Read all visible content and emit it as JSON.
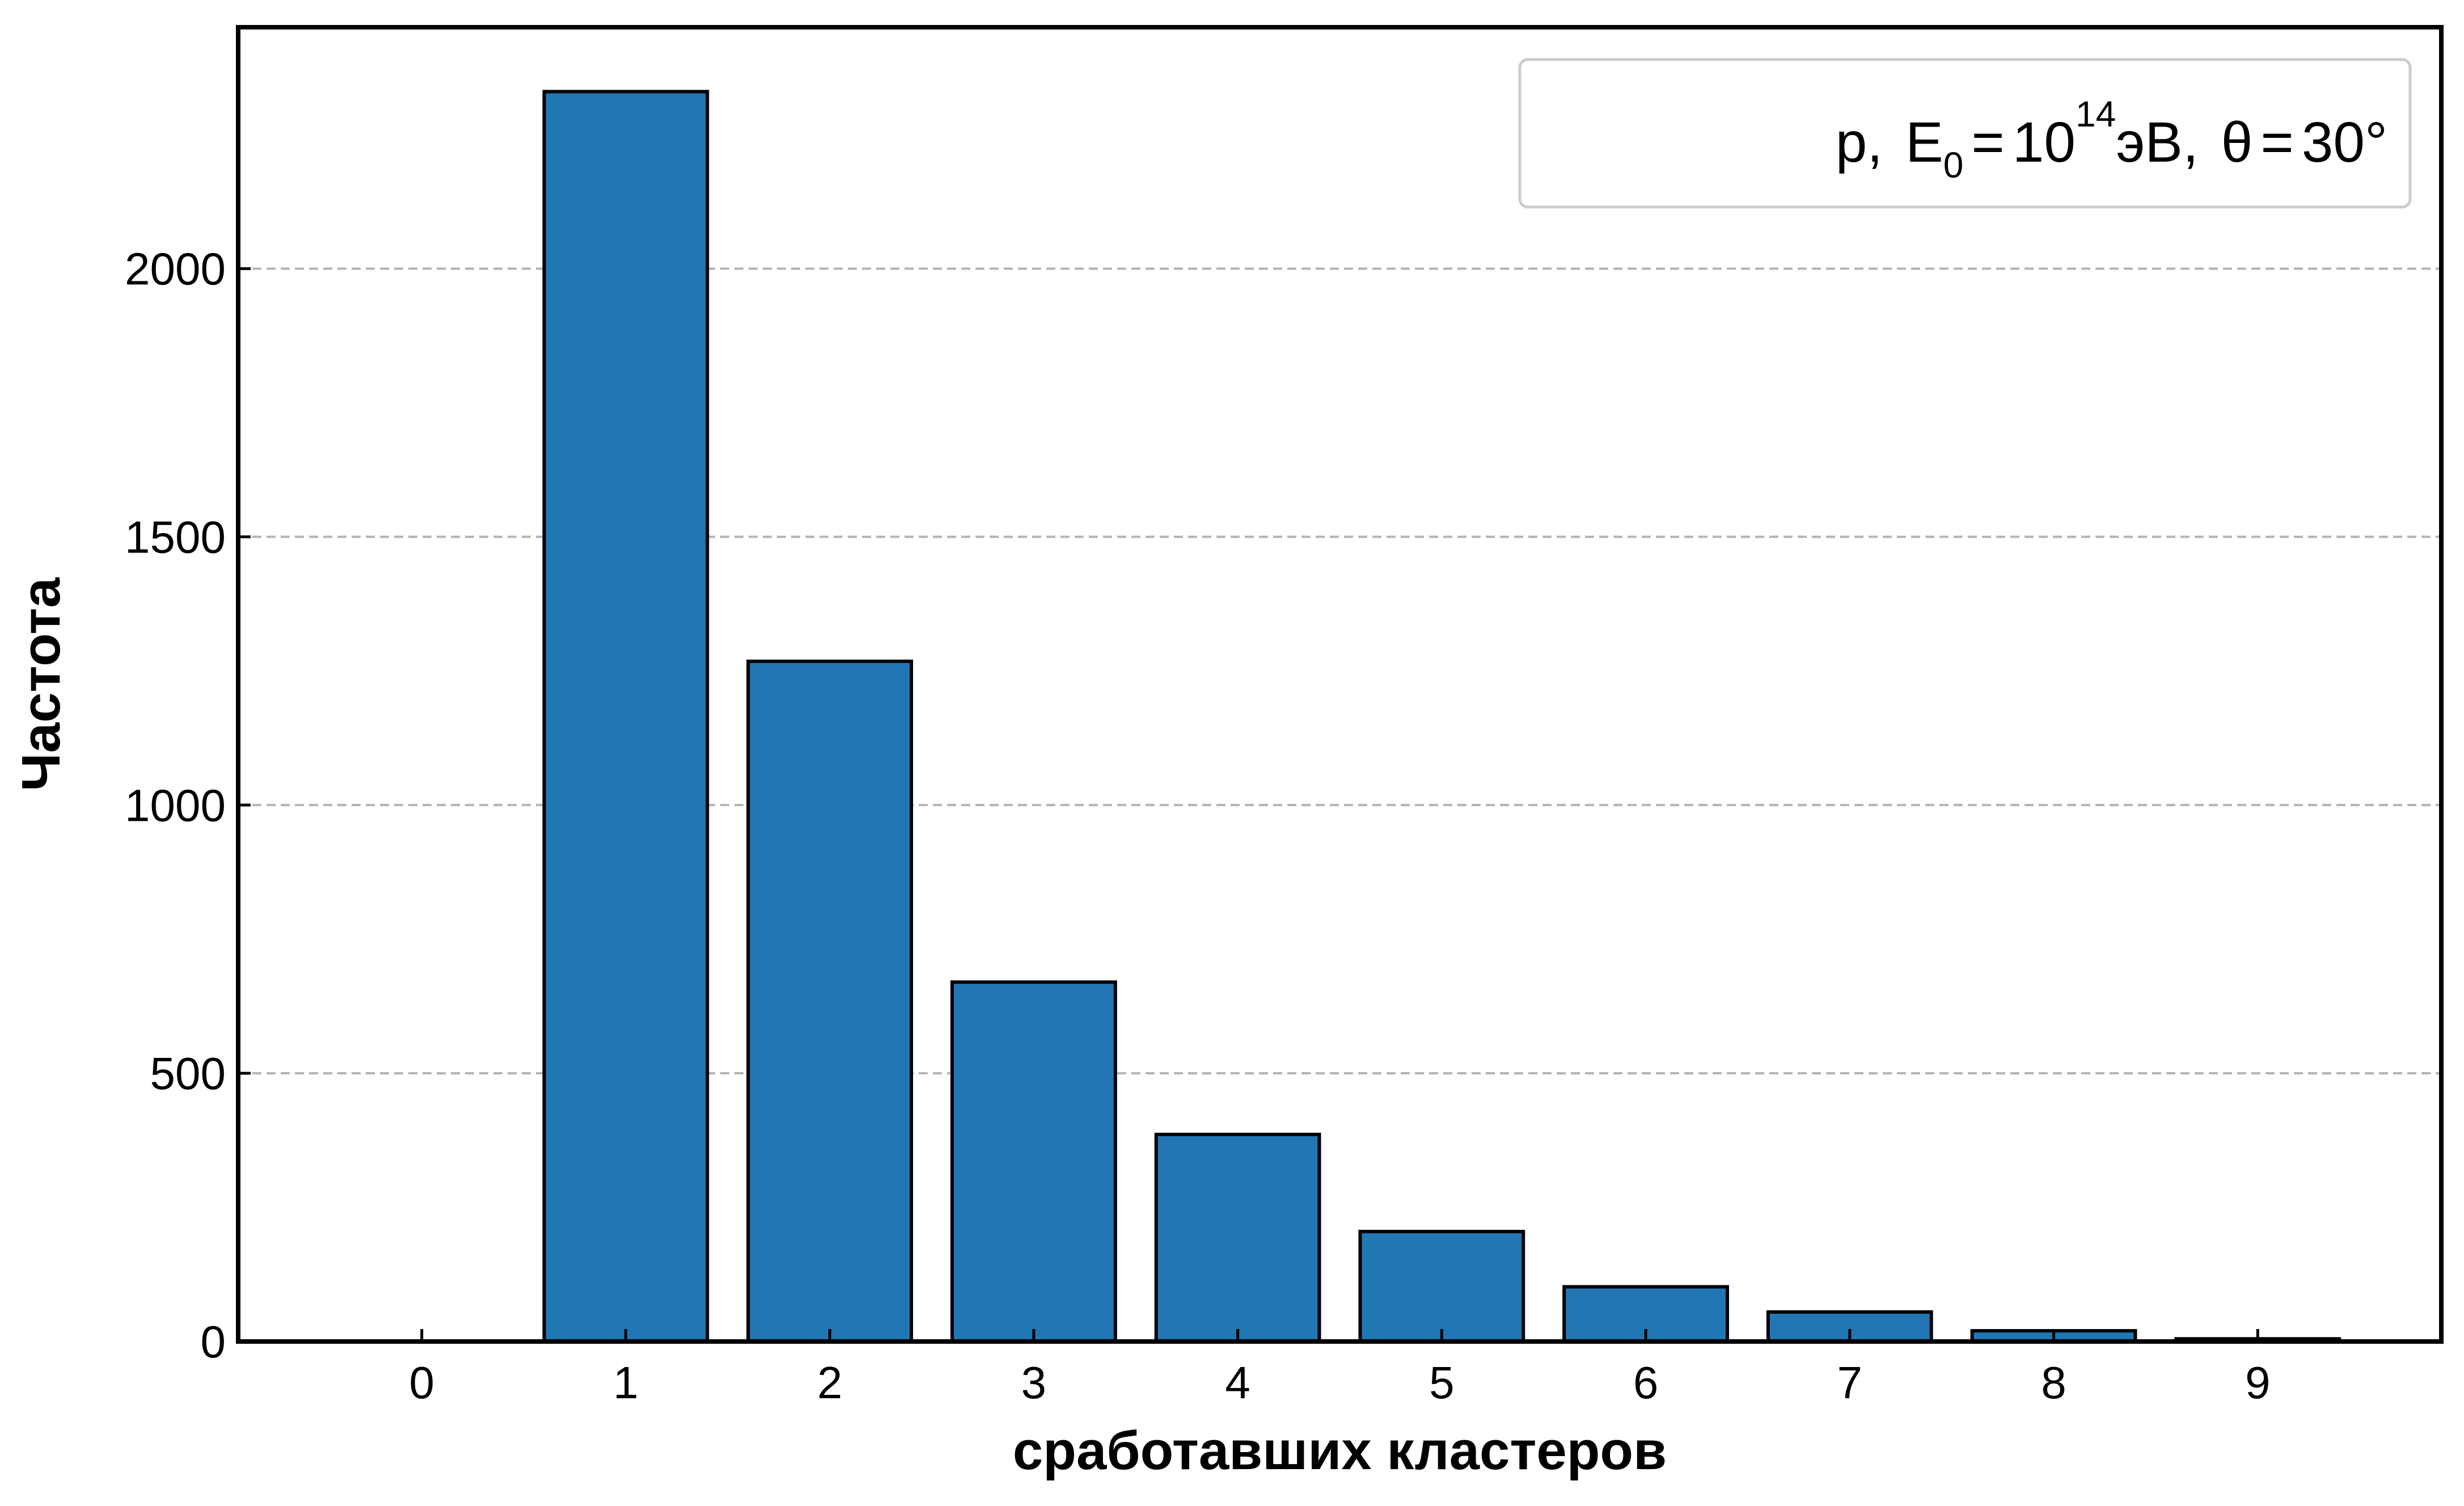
{
  "chart_data": {
    "type": "bar",
    "categories": [
      "0",
      "1",
      "2",
      "3",
      "4",
      "5",
      "6",
      "7",
      "8",
      "9"
    ],
    "values": [
      0,
      2330,
      1268,
      670,
      386,
      205,
      102,
      55,
      20,
      5
    ],
    "xlabel": "сработавших кластеров",
    "ylabel": "Частота",
    "ylim": [
      0,
      2450
    ],
    "yticks": [
      0,
      500,
      1000,
      1500,
      2000
    ],
    "grid": "horizontal dashed",
    "bar_color": "#2077b4",
    "bar_edge_color": "#000000",
    "legend": {
      "placement": "top-right",
      "particle": "p,",
      "energy_symbol": "E",
      "energy_subscript": "0",
      "equals": "=",
      "energy_base": "10",
      "energy_exponent": "14",
      "energy_unit": "эВ,",
      "angle_symbol": "θ",
      "angle_value": "30°"
    }
  }
}
